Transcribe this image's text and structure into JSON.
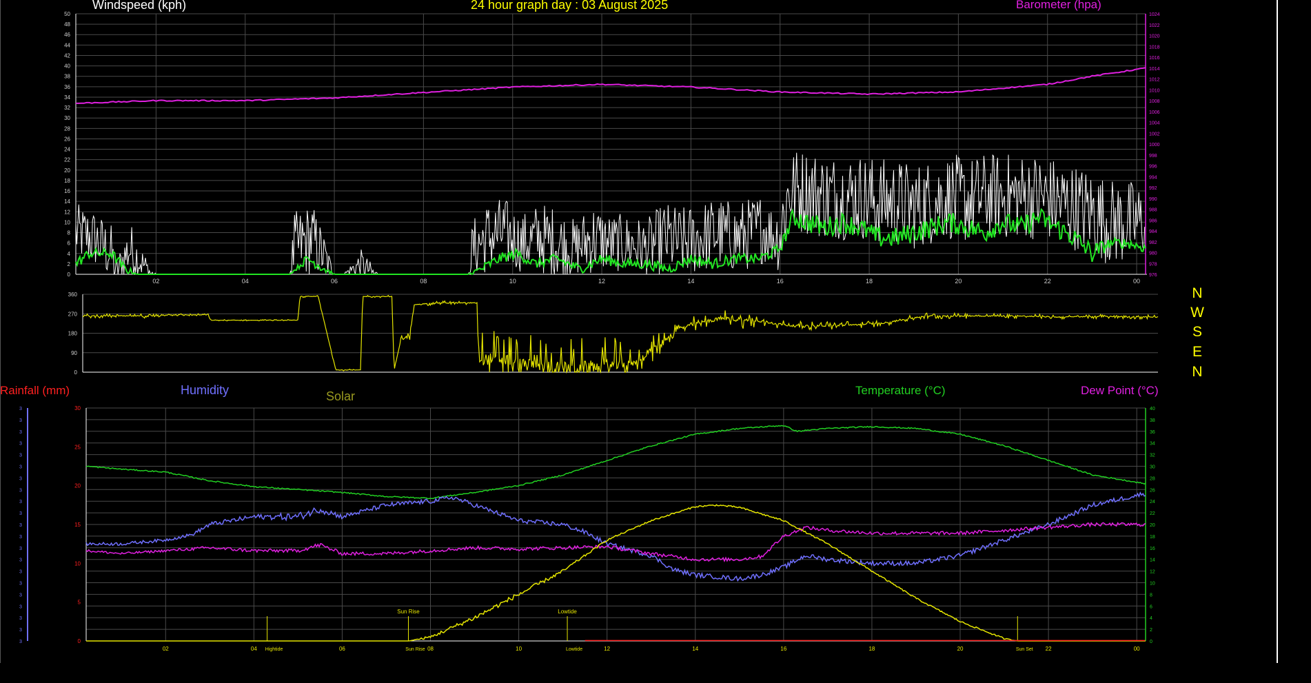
{
  "colors": {
    "background": "#000000",
    "grid": "#4a4a4a",
    "axis": "#ffffff",
    "windspeed": "#ffffff",
    "windspeed_avg": "#22e622",
    "barometer": "#e020e0",
    "direction": "#e6e600",
    "rainfall": "#ff2020",
    "humidity": "#7070ff",
    "solar": "#e6e600",
    "solar_title": "#9a9a20",
    "temperature": "#22d022",
    "dewpoint": "#e020e0",
    "tide": "#e6e600"
  },
  "titles": {
    "windspeed": "Windspeed (kph)",
    "graph_day": "24 hour graph day : 03 August 2025",
    "barometer": "Barometer (hpa)",
    "rainfall": "Rainfall (mm)",
    "humidity": "Humidity",
    "solar": "Solar",
    "temperature": "Temperature (°C)",
    "dewpoint": "Dew Point (°C)"
  },
  "compass": [
    "N",
    "W",
    "S",
    "E",
    "N"
  ],
  "chart_data": [
    {
      "id": "wind-baro",
      "type": "line",
      "title": "24 hour graph day : 03 August 2025",
      "x_ticks": [
        "02",
        "04",
        "06",
        "08",
        "10",
        "12",
        "14",
        "16",
        "18",
        "20",
        "22",
        "00"
      ],
      "x_tick_hours": [
        2,
        4,
        6,
        8,
        10,
        12,
        14,
        16,
        18,
        20,
        22,
        24
      ],
      "xlim": [
        0.2,
        24.2
      ],
      "ylabel": "Windspeed (kph)",
      "ylim": [
        0,
        50
      ],
      "y_ticks": [
        0,
        2,
        4,
        6,
        8,
        10,
        12,
        14,
        16,
        18,
        20,
        22,
        24,
        26,
        28,
        30,
        32,
        34,
        36,
        38,
        40,
        42,
        44,
        46,
        48,
        50
      ],
      "y2label": "Barometer (hpa)",
      "y2lim": [
        976,
        1024
      ],
      "y2_ticks": [
        976,
        978,
        980,
        982,
        984,
        986,
        988,
        990,
        992,
        994,
        996,
        998,
        1000,
        1002,
        1004,
        1006,
        1008,
        1010,
        1012,
        1014,
        1016,
        1018,
        1020,
        1022,
        1024
      ],
      "series": [
        {
          "key": "windspeed_gust",
          "color": "#ffffff",
          "style": "noisy",
          "x": [
            0.2,
            0.6,
            1.0,
            1.1,
            1.4,
            1.9,
            2.0,
            4.0,
            5.0,
            5.1,
            5.5,
            5.8,
            6.0,
            6.2,
            6.6,
            6.9,
            7.0,
            9.0,
            9.1,
            9.4,
            9.8,
            10.2,
            10.6,
            11.0,
            11.4,
            11.8,
            12.2,
            12.6,
            13.0,
            13.4,
            13.8,
            14.2,
            14.6,
            15.0,
            15.4,
            15.6,
            15.9,
            16.0,
            16.2,
            16.6,
            17.0,
            17.4,
            17.8,
            18.2,
            18.6,
            19.0,
            19.4,
            19.8,
            20.2,
            20.6,
            21.0,
            21.4,
            21.8,
            22.2,
            22.6,
            23.0,
            23.4,
            23.8,
            24.2
          ],
          "y": [
            8,
            7,
            4,
            0,
            5,
            0,
            0,
            0,
            0,
            5,
            7,
            3,
            0,
            0,
            2,
            0,
            0,
            0,
            5,
            7,
            8,
            6,
            7,
            6,
            5,
            7,
            6,
            6,
            5,
            7,
            6,
            7,
            8,
            7,
            8,
            9,
            7,
            8,
            16,
            16,
            15,
            15,
            15,
            14,
            14,
            13,
            14,
            15,
            14,
            15,
            15,
            15,
            15,
            14,
            13,
            12,
            10,
            10,
            10
          ],
          "amp": [
            4,
            4,
            4,
            2,
            4,
            1,
            0,
            0,
            0,
            5,
            5,
            3,
            0,
            0,
            2,
            1,
            0,
            0,
            4,
            5,
            5,
            4,
            5,
            5,
            4,
            5,
            4,
            4,
            4,
            5,
            5,
            5,
            5,
            5,
            5,
            5,
            4,
            6,
            6,
            6,
            6,
            6,
            6,
            6,
            6,
            6,
            6,
            6,
            6,
            6,
            6,
            6,
            6,
            6,
            6,
            6,
            6,
            6,
            5
          ]
        },
        {
          "key": "windspeed_avg",
          "color": "#22e622",
          "style": "smooth",
          "x": [
            0.2,
            0.5,
            1.0,
            1.3,
            1.6,
            2.0,
            4.0,
            5.0,
            5.4,
            5.8,
            6.0,
            9.0,
            9.3,
            9.7,
            10.1,
            10.5,
            11.0,
            11.5,
            12.0,
            12.5,
            13.0,
            13.5,
            14.0,
            14.5,
            15.0,
            15.5,
            15.8,
            16.0,
            16.3,
            16.6,
            17.0,
            17.4,
            17.8,
            18.2,
            18.6,
            19.0,
            19.4,
            19.8,
            20.2,
            20.6,
            21.0,
            21.4,
            21.8,
            22.2,
            22.6,
            23.0,
            23.4,
            23.8,
            24.2
          ],
          "y": [
            2,
            4,
            4,
            1,
            0,
            0,
            0,
            0,
            3,
            1,
            0,
            0,
            1,
            3,
            4,
            2,
            3,
            1,
            3,
            2,
            2,
            1,
            3,
            2,
            3,
            3,
            4,
            5,
            11,
            10,
            9,
            10,
            9,
            7,
            7,
            8,
            9,
            10,
            9,
            8,
            10,
            9,
            11,
            9,
            7,
            4,
            6,
            6,
            5
          ],
          "amp": [
            1,
            1,
            1,
            1,
            0,
            0,
            0,
            0,
            1,
            1,
            0,
            0,
            1,
            1,
            1,
            1,
            1,
            1,
            1,
            1,
            1,
            1,
            1,
            1,
            1,
            1,
            1,
            1,
            2,
            2,
            2,
            2,
            2,
            2,
            2,
            2,
            2,
            2,
            2,
            2,
            2,
            2,
            2,
            2,
            2,
            2,
            1,
            1,
            1
          ]
        },
        {
          "key": "barometer",
          "color": "#e020e0",
          "style": "smooth",
          "axis": "y2",
          "x": [
            0.2,
            2,
            4,
            6,
            8,
            10,
            12,
            14,
            16,
            18,
            20,
            22,
            23,
            24.2
          ],
          "y": [
            1007.5,
            1008,
            1008,
            1008.5,
            1009.5,
            1010.5,
            1011,
            1010.5,
            1009.6,
            1009.2,
            1009.6,
            1011,
            1012.5,
            1014
          ],
          "amp": [
            0.1,
            0.1,
            0.1,
            0.1,
            0.1,
            0.1,
            0.1,
            0.1,
            0.1,
            0.1,
            0.1,
            0.1,
            0.1,
            0.1
          ]
        }
      ]
    },
    {
      "id": "wind-direction",
      "type": "line",
      "x_ticks": [
        "02",
        "04",
        "06",
        "08",
        "10",
        "12",
        "14",
        "16",
        "18",
        "20",
        "22",
        "00"
      ],
      "xlim": [
        0.2,
        24.2
      ],
      "ylim": [
        0,
        360
      ],
      "y_ticks": [
        "0",
        "90",
        "180",
        "270",
        "360"
      ],
      "series": [
        {
          "key": "direction",
          "color": "#e6e600",
          "style": "steps",
          "x": [
            0.2,
            1.9,
            2.0,
            3.0,
            3.05,
            5.0,
            5.05,
            5.4,
            5.45,
            5.85,
            6.4,
            6.45,
            7.1,
            7.15,
            7.3,
            7.5,
            7.6,
            8.0,
            9.0,
            9.05,
            9.6,
            10.0,
            10.5,
            11.0,
            11.5,
            12.0,
            12.5,
            13.0,
            13.5,
            14.0,
            14.5,
            15.0,
            15.5,
            16.0,
            17.0,
            18.0,
            19.0,
            20.0,
            21.0,
            22.0,
            23.0,
            24.2
          ],
          "y": [
            260,
            260,
            265,
            265,
            240,
            240,
            350,
            350,
            355,
            10,
            10,
            350,
            350,
            10,
            150,
            165,
            310,
            320,
            320,
            60,
            60,
            35,
            30,
            20,
            25,
            30,
            40,
            120,
            200,
            230,
            250,
            240,
            230,
            215,
            215,
            225,
            260,
            260,
            260,
            255,
            258,
            255
          ],
          "amp": [
            10,
            10,
            5,
            5,
            3,
            3,
            5,
            5,
            5,
            5,
            5,
            5,
            5,
            5,
            20,
            20,
            10,
            10,
            10,
            140,
            140,
            140,
            140,
            140,
            140,
            140,
            60,
            60,
            40,
            40,
            40,
            40,
            30,
            20,
            20,
            15,
            15,
            12,
            12,
            10,
            10,
            10
          ]
        }
      ]
    },
    {
      "id": "temp-hum",
      "type": "line",
      "x_ticks": [
        "02",
        "04",
        "06",
        "08",
        "10",
        "12",
        "14",
        "16",
        "18",
        "20",
        "22",
        "00"
      ],
      "xlim": [
        0.2,
        24.2
      ],
      "ylabel": "Rainfall (mm)",
      "ylim": [
        0,
        30
      ],
      "y_ticks": [
        0,
        5,
        10,
        15,
        20,
        25,
        30
      ],
      "y2label": "Temperature (°C)",
      "y2lim": [
        0,
        40
      ],
      "y2_ticks": [
        0,
        2,
        4,
        6,
        8,
        10,
        12,
        14,
        16,
        18,
        20,
        22,
        24,
        26,
        28,
        30,
        32,
        34,
        36,
        38,
        40
      ],
      "tide_markers": [
        {
          "hour": 4.3,
          "label": "Hightide"
        },
        {
          "hour": 7.5,
          "label": "Sun Rise",
          "top_label": "Sun Rise"
        },
        {
          "hour": 11.1,
          "label": "Lowtide",
          "top_label": "Lowtide"
        },
        {
          "hour": 21.3,
          "label": "Sun Set"
        }
      ],
      "series": [
        {
          "key": "temperature",
          "color": "#22d022",
          "style": "smooth",
          "axis": "y2",
          "x": [
            0.2,
            1,
            2,
            3,
            4,
            5,
            6,
            7,
            8,
            9,
            10,
            11,
            12,
            13,
            14,
            15,
            16,
            16.3,
            17,
            18,
            19,
            20,
            21,
            22,
            23,
            24.2
          ],
          "y": [
            30,
            29.5,
            29,
            27.5,
            26.5,
            26,
            25.5,
            24.8,
            24.5,
            25.5,
            26.7,
            28.5,
            31,
            33.5,
            35.5,
            36.5,
            37,
            36,
            36.5,
            36.8,
            36.5,
            35.5,
            33.5,
            31,
            28.5,
            27
          ],
          "amp": [
            0.1,
            0.1,
            0.1,
            0.1,
            0.1,
            0.1,
            0.1,
            0.1,
            0.1,
            0.1,
            0.1,
            0.1,
            0.1,
            0.1,
            0.1,
            0.1,
            0.1,
            0.1,
            0.1,
            0.1,
            0.1,
            0.1,
            0.1,
            0.1,
            0.1,
            0.1
          ]
        },
        {
          "key": "humidity",
          "color": "#7070ff",
          "style": "smooth",
          "x": [
            0.2,
            1,
            2,
            2.6,
            3,
            4,
            5,
            5.5,
            6,
            7,
            8,
            8.5,
            9,
            10,
            11,
            11.5,
            12,
            13,
            13.5,
            14,
            15,
            15.5,
            16,
            16.5,
            17,
            18,
            19,
            20,
            21,
            22,
            23,
            24.2
          ],
          "y": [
            12.5,
            12.5,
            13,
            13.7,
            15,
            16,
            16,
            17,
            16,
            17.5,
            18,
            18.5,
            17.5,
            15.5,
            15,
            14,
            12.5,
            11,
            9.2,
            8.5,
            8,
            8.5,
            9.5,
            11,
            10.5,
            10,
            10,
            11,
            13,
            15,
            17.5,
            19
          ],
          "amp": [
            0.2,
            0.2,
            0.2,
            0.2,
            0.3,
            0.3,
            0.5,
            0.5,
            0.3,
            0.3,
            0.3,
            0.3,
            0.3,
            0.3,
            0.3,
            0.3,
            0.3,
            0.3,
            0.3,
            0.3,
            0.3,
            0.3,
            0.3,
            0.3,
            0.3,
            0.3,
            0.3,
            0.3,
            0.3,
            0.3,
            0.3,
            0.3
          ]
        },
        {
          "key": "dewpoint",
          "color": "#e020e0",
          "style": "smooth",
          "axis": "y2",
          "x": [
            0.2,
            1,
            2,
            3,
            4,
            5,
            5.5,
            6,
            7,
            8,
            9,
            10,
            11,
            12,
            13,
            14,
            15,
            15.5,
            16,
            16.5,
            17,
            18,
            19,
            20,
            21,
            22,
            23,
            24.2
          ],
          "y": [
            15.5,
            15,
            15.5,
            16,
            15.5,
            15.5,
            16.5,
            15,
            15,
            15.5,
            16,
            15.8,
            16,
            16.2,
            15,
            14,
            14,
            14.5,
            18,
            19.5,
            19,
            18.5,
            18.5,
            18.5,
            19,
            19.5,
            20,
            20
          ],
          "amp": [
            0.2,
            0.2,
            0.2,
            0.3,
            0.3,
            0.3,
            0.4,
            0.3,
            0.3,
            0.3,
            0.3,
            0.3,
            0.3,
            0.3,
            0.3,
            0.3,
            0.3,
            0.3,
            0.3,
            0.3,
            0.3,
            0.3,
            0.3,
            0.3,
            0.3,
            0.3,
            0.3,
            0.3
          ]
        },
        {
          "key": "solar",
          "color": "#e6e600",
          "style": "smooth",
          "x": [
            0.2,
            7.5,
            8,
            9,
            10,
            11,
            12,
            13,
            14,
            14.5,
            15,
            16,
            17,
            18,
            19,
            20,
            21,
            21.3,
            24.2
          ],
          "y": [
            0,
            0,
            0.5,
            3,
            6,
            9,
            13,
            15.5,
            17.3,
            17.5,
            17.2,
            15.5,
            12.5,
            9,
            5.5,
            2.5,
            0.3,
            0,
            0
          ],
          "amp": [
            0,
            0,
            0.2,
            0.3,
            0.3,
            0.2,
            0.1,
            0.1,
            0.1,
            0.1,
            0.1,
            0.1,
            0.1,
            0.1,
            0.1,
            0.1,
            0.1,
            0,
            0
          ]
        },
        {
          "key": "rainfall",
          "color": "#ff2020",
          "style": "smooth",
          "x": [
            11.5,
            24.2
          ],
          "y": [
            0.05,
            0.05
          ],
          "amp": [
            0,
            0
          ]
        }
      ]
    }
  ]
}
